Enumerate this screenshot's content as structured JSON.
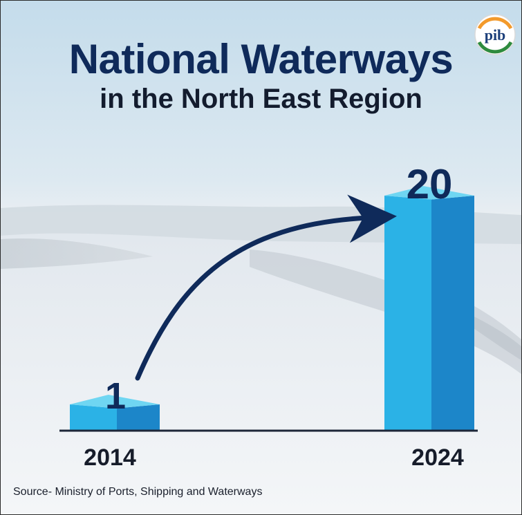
{
  "header": {
    "title_line1": "National Waterways",
    "title_line2": "in the North East Region"
  },
  "source": "Source- Ministry of Ports, Shipping and Waterways",
  "logo": {
    "icon": "pib-logo",
    "text": "pib"
  },
  "colors": {
    "title": "#0f2a5a",
    "bar_front": "#2bb2e6",
    "bar_side": "#1c86c9",
    "bar_top": "#6fd6f2",
    "arrow": "#0f2a5a",
    "axis": "#1c2638"
  },
  "chart_data": {
    "type": "bar",
    "categories": [
      "2014",
      "2024"
    ],
    "values": [
      1,
      20
    ],
    "title": "National Waterways in the North East Region",
    "xlabel": "",
    "ylabel": "",
    "ylim": [
      0,
      20
    ],
    "data_labels": true,
    "grid": false,
    "annotation": "arrow from 2014 bar to 2024 bar"
  }
}
